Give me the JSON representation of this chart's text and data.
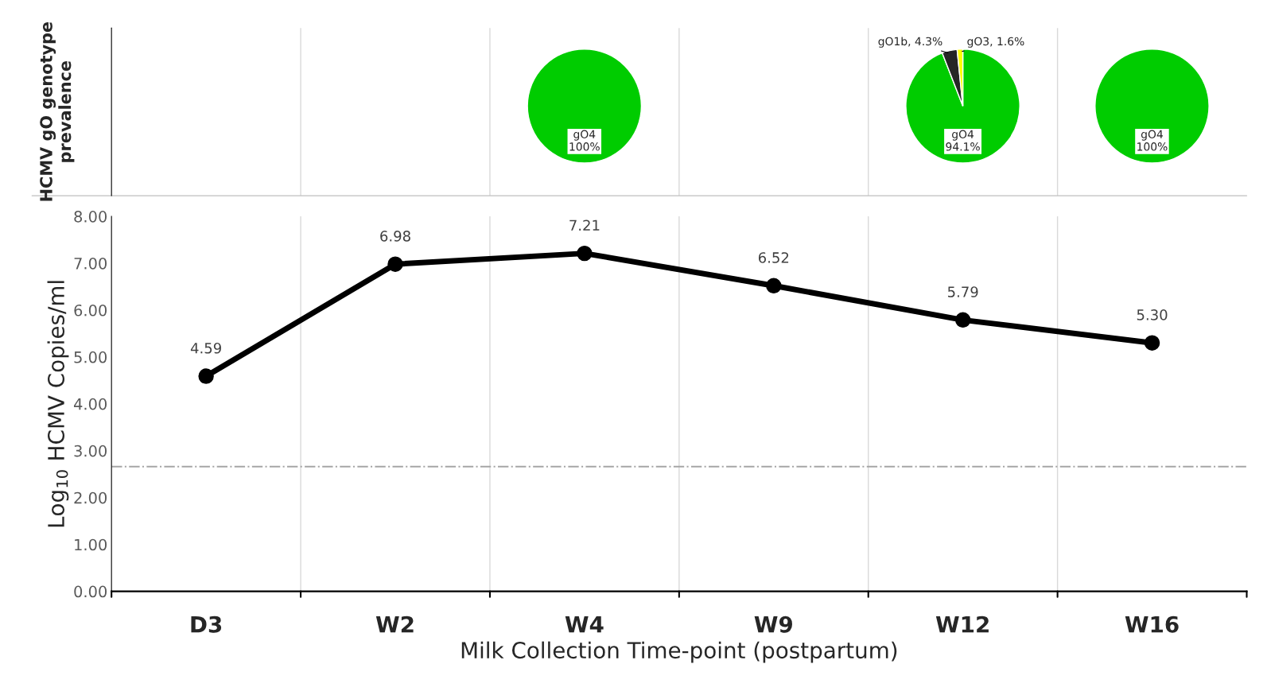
{
  "chart_data": [
    {
      "type": "line",
      "xlabel": "Milk Collection Time-point (postpartum)",
      "ylabel": "Log$_{10}$ HCMV Copies/ml",
      "categories": [
        "D3",
        "W2",
        "W4",
        "W9",
        "W12",
        "W16"
      ],
      "series": [
        {
          "color": "#000000",
          "values": [
            4.59,
            6.98,
            7.21,
            6.52,
            5.79,
            5.3
          ]
        }
      ],
      "value_labels": [
        "4.59",
        "6.98",
        "7.21",
        "6.52",
        "5.79",
        "5.30"
      ],
      "ylim": [
        0,
        8
      ],
      "yticks": [
        {
          "value": 0,
          "label": "0.00"
        },
        {
          "value": 1,
          "label": "1.00"
        },
        {
          "value": 2,
          "label": "2.00"
        },
        {
          "value": 3,
          "label": "3.00"
        },
        {
          "value": 4,
          "label": "4.00"
        },
        {
          "value": 5,
          "label": "5.00"
        },
        {
          "value": 6,
          "label": "6.00"
        },
        {
          "value": 7,
          "label": "7.00"
        },
        {
          "value": 8,
          "label": "8.00"
        }
      ],
      "ref_lines": [
        {
          "axis": "y",
          "value": 2.66,
          "color": "#a6a6a6",
          "line_style": "dashdot"
        }
      ],
      "grid": "x",
      "marker": "circle",
      "line_style": "solid",
      "legend": false,
      "annotations": [
        "HCMV gO genotype prevalence"
      ]
    },
    {
      "type": "pie",
      "categories": [
        "gO4"
      ],
      "values": [
        100
      ],
      "value_labels": [
        "100%"
      ],
      "colors": [
        "#00cc00"
      ]
    },
    {
      "type": "pie",
      "categories": [
        "gO4",
        "gO1b",
        "gO3"
      ],
      "values": [
        94.1,
        4.3,
        1.6
      ],
      "value_labels": [
        "94.1%",
        "4.3%",
        "1.6%"
      ],
      "colors": [
        "#00cc00",
        "#262626",
        "#ffff00"
      ]
    },
    {
      "type": "pie",
      "categories": [
        "gO4"
      ],
      "values": [
        100
      ],
      "value_labels": [
        "100%"
      ],
      "colors": [
        "#00cc00"
      ]
    }
  ]
}
